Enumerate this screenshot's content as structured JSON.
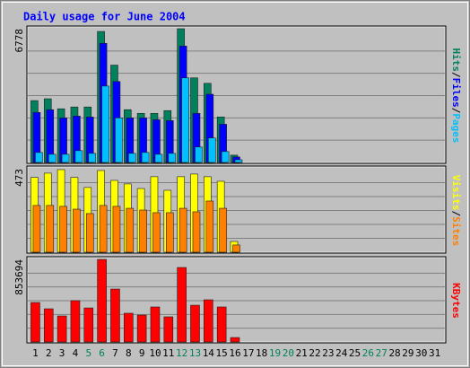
{
  "chart_data": [
    {
      "type": "bar",
      "title": "Daily usage for June 2004",
      "legend_separator": "/",
      "ylim": [
        0,
        6778
      ],
      "yticks": [
        6778
      ],
      "series": [
        {
          "name": "Pages",
          "color": "#00c0ff",
          "values": [
            507,
            415,
            415,
            599,
            461,
            3872,
            2259,
            461,
            507,
            415,
            461,
            4287,
            784,
            1245,
            553,
            138,
            null,
            null,
            null,
            null,
            null,
            null,
            null,
            null,
            null,
            null,
            null,
            null,
            null,
            null,
            null
          ]
        },
        {
          "name": "Files",
          "color": "#0000ff",
          "values": [
            2535,
            2674,
            2259,
            2351,
            2305,
            6039,
            4103,
            2259,
            2259,
            2167,
            2121,
            5901,
            2489,
            3458,
            1936,
            277,
            null,
            null,
            null,
            null,
            null,
            null,
            null,
            null,
            null,
            null,
            null,
            null,
            null,
            null,
            null
          ]
        },
        {
          "name": "Hits",
          "color": "#00805c",
          "values": [
            3135,
            3227,
            2720,
            2812,
            2812,
            6639,
            4933,
            2674,
            2489,
            2489,
            2628,
            6778,
            4287,
            4011,
            2305,
            369,
            null,
            null,
            null,
            null,
            null,
            null,
            null,
            null,
            null,
            null,
            null,
            null,
            null,
            null,
            null
          ]
        }
      ]
    },
    {
      "type": "bar",
      "legend_separator": "/",
      "ylim": [
        0,
        473
      ],
      "yticks": [
        473
      ],
      "series": [
        {
          "name": "Sites",
          "color": "#ff8000",
          "values": [
            265,
            265,
            260,
            244,
            219,
            265,
            260,
            249,
            239,
            224,
            224,
            249,
            229,
            290,
            249,
            41,
            null,
            null,
            null,
            null,
            null,
            null,
            null,
            null,
            null,
            null,
            null,
            null,
            null,
            null,
            null
          ]
        },
        {
          "name": "Visits",
          "color": "#ffff00",
          "values": [
            424,
            448,
            468,
            424,
            367,
            463,
            407,
            387,
            361,
            428,
            351,
            428,
            443,
            428,
            402,
            61,
            null,
            null,
            null,
            null,
            null,
            null,
            null,
            null,
            null,
            null,
            null,
            null,
            null,
            null,
            null
          ]
        }
      ]
    },
    {
      "type": "bar",
      "ylim": [
        0,
        853694
      ],
      "yticks": [
        853694
      ],
      "series": [
        {
          "name": "KBytes",
          "color": "#ff0000",
          "values": [
            408000,
            343000,
            269000,
            427000,
            352000,
            853694,
            547000,
            297000,
            278000,
            362000,
            260000,
            770000,
            380000,
            436000,
            362000,
            46000,
            null,
            null,
            null,
            null,
            null,
            null,
            null,
            null,
            null,
            null,
            null,
            null,
            null,
            null,
            null
          ]
        }
      ],
      "categories": [
        "1",
        "2",
        "3",
        "4",
        "5",
        "6",
        "7",
        "8",
        "9",
        "10",
        "11",
        "12",
        "13",
        "14",
        "15",
        "16",
        "17",
        "18",
        "19",
        "20",
        "21",
        "22",
        "23",
        "24",
        "25",
        "26",
        "27",
        "28",
        "29",
        "30",
        "31"
      ],
      "category_colors": [
        "#000000",
        "#000000",
        "#000000",
        "#000000",
        "#00805c",
        "#00805c",
        "#000000",
        "#000000",
        "#000000",
        "#000000",
        "#000000",
        "#00805c",
        "#00805c",
        "#000000",
        "#000000",
        "#000000",
        "#000000",
        "#000000",
        "#00805c",
        "#00805c",
        "#000000",
        "#000000",
        "#000000",
        "#000000",
        "#000000",
        "#00805c",
        "#00805c",
        "#000000",
        "#000000",
        "#000000",
        "#000000"
      ]
    }
  ]
}
